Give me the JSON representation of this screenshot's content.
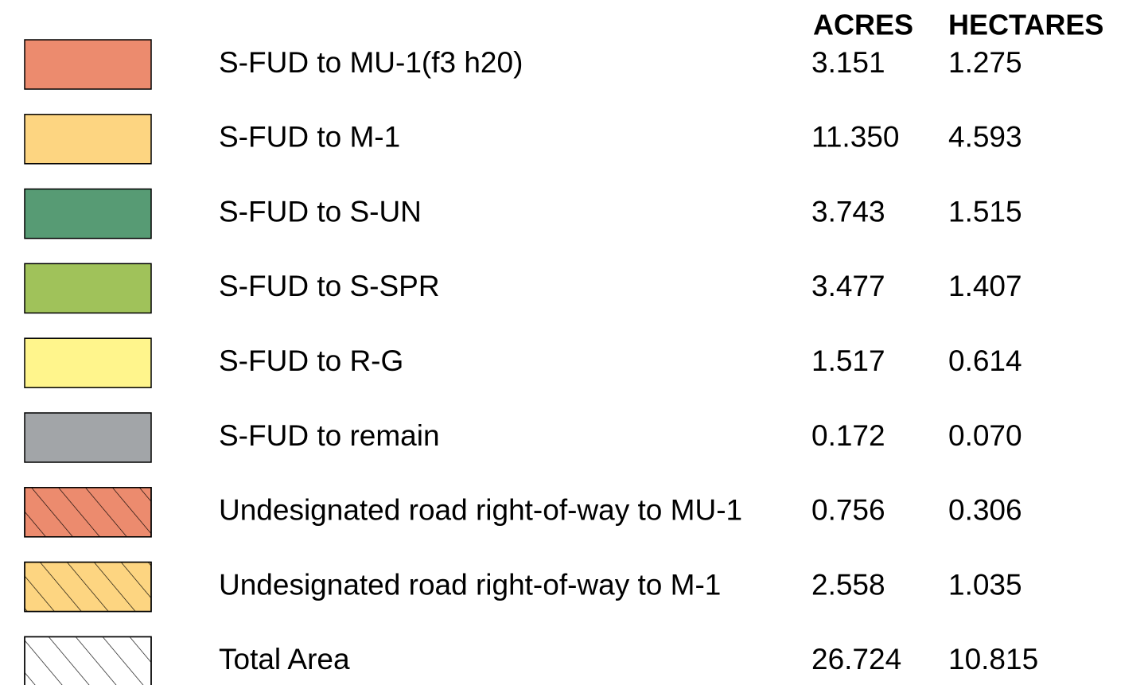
{
  "legend": {
    "headers": [
      "ACRES",
      "HECTARES"
    ],
    "rows": [
      {
        "color": "#EC8B6E",
        "hatch": false,
        "label": "S-FUD to MU-1(f3 h20)",
        "acres": "3.151",
        "hectares": "1.275"
      },
      {
        "color": "#FDD581",
        "hatch": false,
        "label": "S-FUD to M-1",
        "acres": "11.350",
        "hectares": "4.593"
      },
      {
        "color": "#579B74",
        "hatch": false,
        "label": "S-FUD to S-UN",
        "acres": "3.743",
        "hectares": "1.515"
      },
      {
        "color": "#A0C25A",
        "hatch": false,
        "label": "S-FUD to S-SPR",
        "acres": "3.477",
        "hectares": "1.407"
      },
      {
        "color": "#FFF58C",
        "hatch": false,
        "label": "S-FUD to R-G",
        "acres": "1.517",
        "hectares": "0.614"
      },
      {
        "color": "#A2A5A8",
        "hatch": false,
        "label": "S-FUD to remain",
        "acres": "0.172",
        "hectares": "0.070"
      },
      {
        "color": "#EC8B6E",
        "hatch": true,
        "label": "Undesignated road right-of-way to MU-1",
        "acres": "0.756",
        "hectares": "0.306"
      },
      {
        "color": "#FDD581",
        "hatch": true,
        "label": "Undesignated road right-of-way to M-1",
        "acres": "2.558",
        "hectares": "1.035"
      },
      {
        "color": "#FFFFFF",
        "hatch": true,
        "label": "Total Area",
        "acres": "26.724",
        "hectares": "10.815"
      }
    ]
  }
}
